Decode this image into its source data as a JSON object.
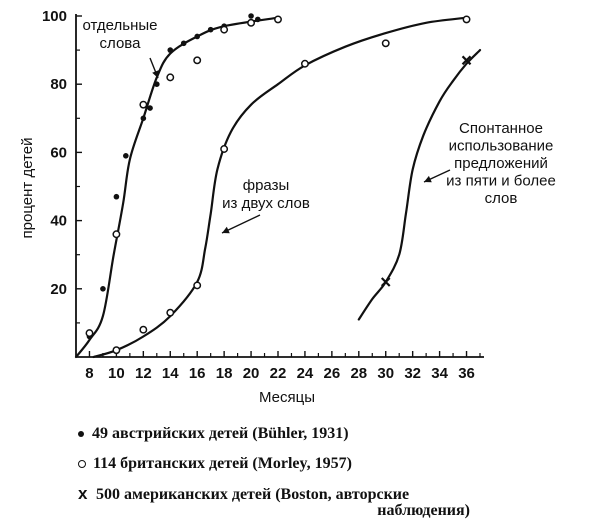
{
  "chart_data": {
    "type": "line",
    "xlabel": "Месяцы",
    "ylabel": "процент детей",
    "xlim": [
      7,
      37
    ],
    "ylim": [
      0,
      100
    ],
    "x_ticks": [
      8,
      10,
      12,
      14,
      16,
      18,
      20,
      22,
      24,
      26,
      28,
      30,
      32,
      34,
      36
    ],
    "y_ticks": [
      20,
      40,
      60,
      80,
      100
    ],
    "grid": false,
    "curves": [
      {
        "label_lines": [
          "отдельные",
          "слова"
        ],
        "points": [
          [
            7,
            0
          ],
          [
            8,
            5
          ],
          [
            9,
            12
          ],
          [
            9.8,
            30
          ],
          [
            10.5,
            45
          ],
          [
            11,
            58
          ],
          [
            12,
            70
          ],
          [
            13,
            82
          ],
          [
            14,
            89
          ],
          [
            16,
            94
          ],
          [
            18,
            97
          ],
          [
            22,
            99.5
          ]
        ]
      },
      {
        "label_lines": [
          "фразы",
          "из двух слов"
        ],
        "points": [
          [
            8.3,
            0
          ],
          [
            10,
            2
          ],
          [
            12,
            6
          ],
          [
            14,
            12
          ],
          [
            16,
            22
          ],
          [
            16.6,
            32
          ],
          [
            17,
            42
          ],
          [
            17.5,
            55
          ],
          [
            18.5,
            66
          ],
          [
            20,
            74
          ],
          [
            22,
            80
          ],
          [
            24,
            85.5
          ],
          [
            27,
            91
          ],
          [
            30,
            95
          ],
          [
            33,
            98
          ],
          [
            36,
            99.5
          ]
        ]
      },
      {
        "label_lines": [
          "Спонтанное",
          "использование",
          "предложений",
          "из пяти и более",
          "слов"
        ],
        "points": [
          [
            28,
            11
          ],
          [
            29,
            17
          ],
          [
            30,
            22
          ],
          [
            31,
            30
          ],
          [
            31.5,
            42
          ],
          [
            32,
            55
          ],
          [
            32.8,
            65
          ],
          [
            34,
            75
          ],
          [
            35,
            81
          ],
          [
            36,
            86
          ],
          [
            37,
            90
          ]
        ]
      }
    ],
    "series": [
      {
        "name": "49 австрийских детей (Bühler, 1931)",
        "marker": "dot",
        "points": [
          [
            8,
            6
          ],
          [
            9,
            20
          ],
          [
            10,
            47
          ],
          [
            10.7,
            59
          ],
          [
            12,
            70
          ],
          [
            12.5,
            73
          ],
          [
            13,
            80
          ],
          [
            14,
            90
          ],
          [
            15,
            92
          ],
          [
            16,
            94
          ],
          [
            17,
            96
          ],
          [
            18,
            97
          ],
          [
            20,
            100
          ],
          [
            20.5,
            99
          ],
          [
            22,
            99
          ]
        ]
      },
      {
        "name": "114 британских детей (Morley, 1957)",
        "marker": "circle",
        "points": [
          [
            8,
            7
          ],
          [
            10,
            36
          ],
          [
            12,
            74
          ],
          [
            14,
            82
          ],
          [
            16,
            87
          ],
          [
            18,
            96
          ],
          [
            20,
            98
          ],
          [
            22,
            99
          ],
          [
            10,
            2
          ],
          [
            12,
            8
          ],
          [
            14,
            13
          ],
          [
            16,
            21
          ],
          [
            18,
            61
          ],
          [
            24,
            86
          ],
          [
            30,
            92
          ],
          [
            36,
            99
          ]
        ]
      },
      {
        "name": "500 американских детей (Boston, авторские наблюдения)",
        "marker": "x",
        "points": [
          [
            30,
            22
          ],
          [
            36,
            87
          ]
        ]
      }
    ],
    "legend_entries": [
      {
        "text": "49 австрийских детей (Bühler, 1931)"
      },
      {
        "text": "114 британских детей (Morley, 1957)"
      },
      {
        "text": "500 американских детей (Boston, авторские",
        "cont": "наблюдения)"
      }
    ]
  }
}
